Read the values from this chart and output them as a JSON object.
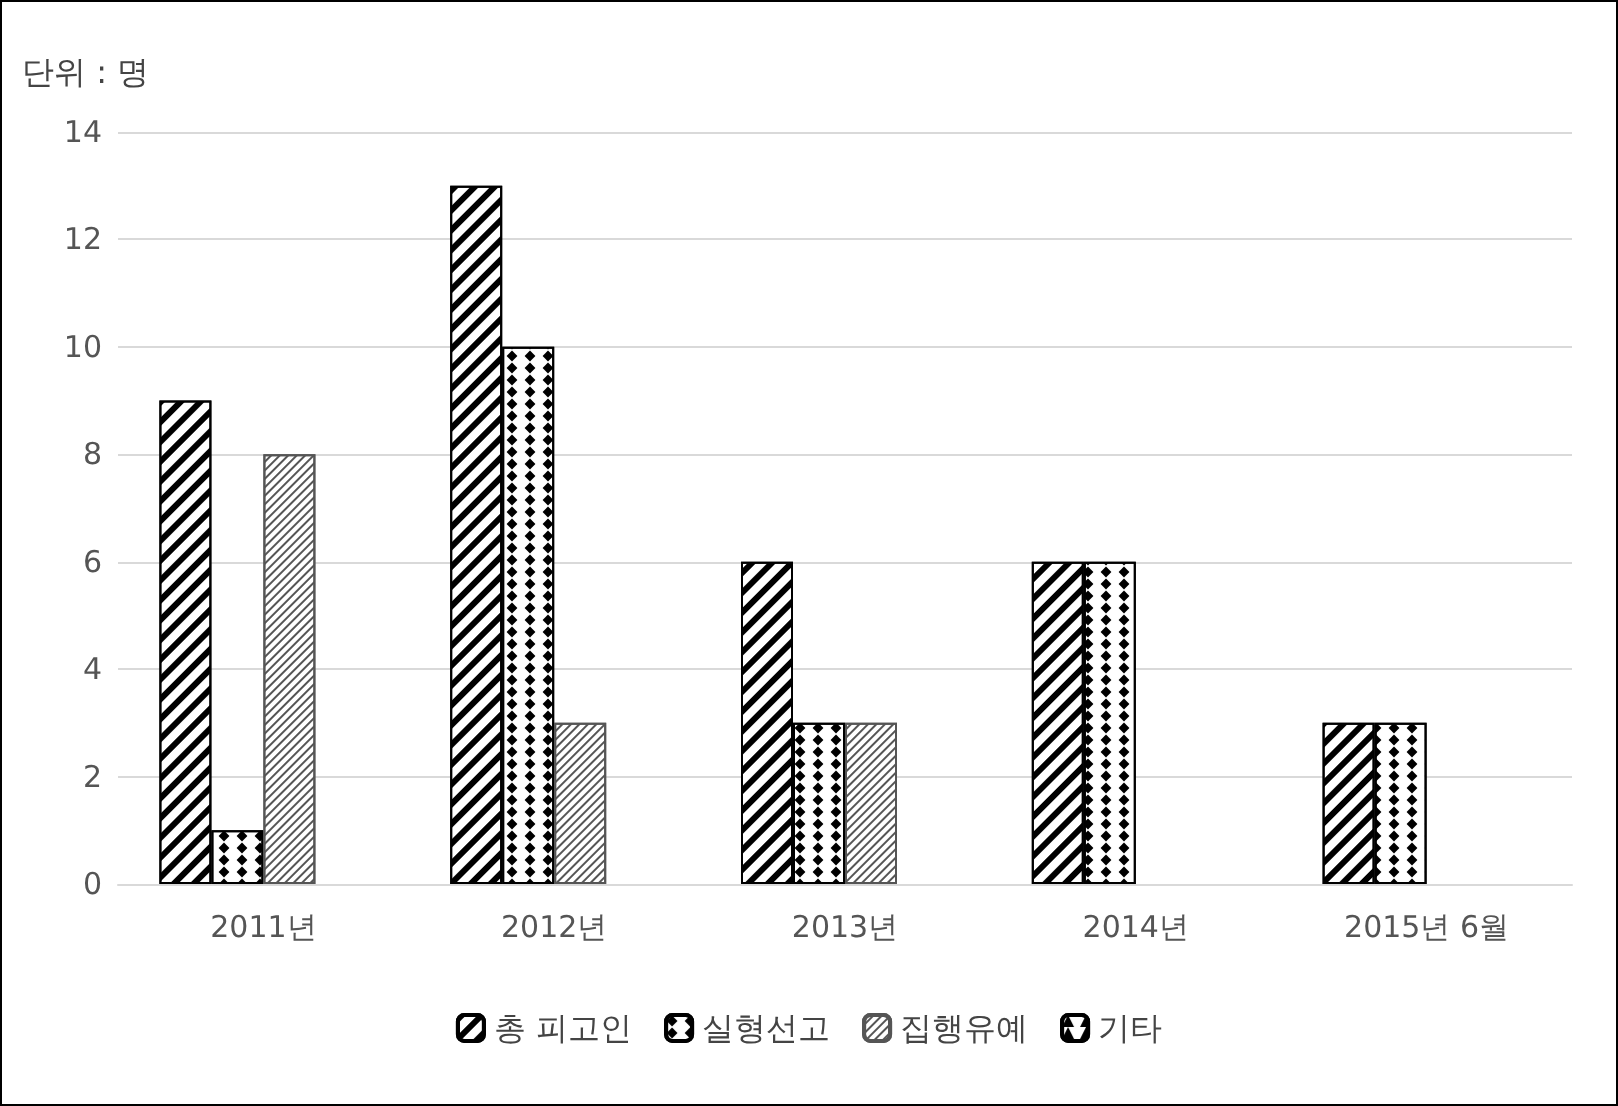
{
  "chart_data": {
    "type": "bar",
    "ylabel": "단위 : 명",
    "categories": [
      "2011년",
      "2012년",
      "2013년",
      "2014년",
      "2015년 6월"
    ],
    "series": [
      {
        "name": "총 피고인",
        "color": "#000000",
        "values": [
          9,
          13,
          6,
          6,
          3
        ]
      },
      {
        "name": "실형선고",
        "color": "#000000",
        "values": [
          1,
          10,
          3,
          6,
          3
        ]
      },
      {
        "name": "집행유예",
        "color": "#555555",
        "values": [
          8,
          3,
          3,
          null,
          null
        ]
      },
      {
        "name": "기타",
        "color": "#000000",
        "values": [
          null,
          null,
          null,
          null,
          null
        ]
      }
    ],
    "ylim": [
      0,
      14
    ],
    "yticks": [
      0,
      2,
      4,
      6,
      8,
      10,
      12,
      14
    ],
    "grid": "y",
    "legend": "bottom"
  }
}
